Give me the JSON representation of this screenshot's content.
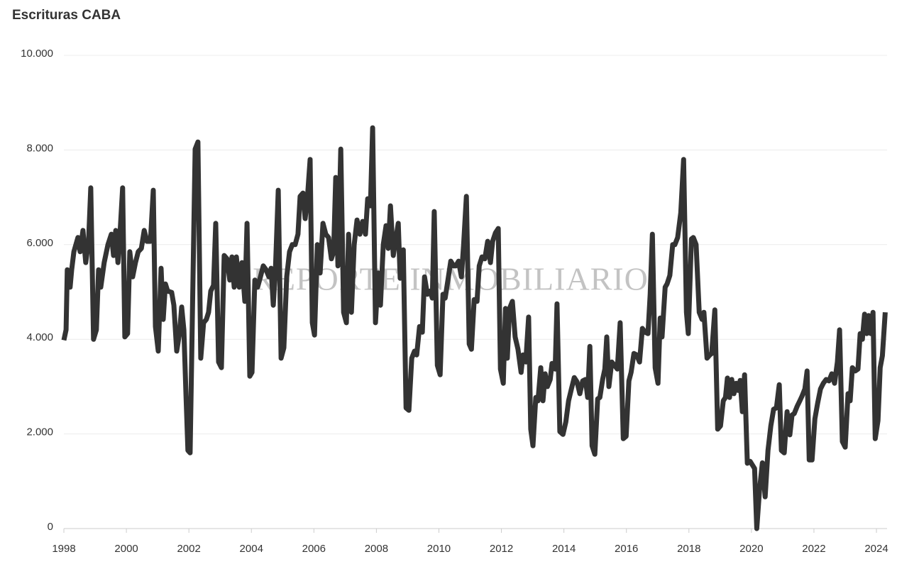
{
  "chart_data": {
    "type": "line",
    "title": "Escrituras CABA",
    "watermark": "REPORTE INMOBILIARIO",
    "color": "#333333",
    "grid": true,
    "xlim": [
      1998,
      2024.34
    ],
    "xticks": [
      1998,
      2000,
      2002,
      2004,
      2006,
      2008,
      2010,
      2012,
      2014,
      2016,
      2018,
      2020,
      2022,
      2024
    ],
    "ylim": [
      0,
      10000
    ],
    "yticks": [
      0,
      {
        "value": 2000,
        "label": "2.000"
      },
      {
        "value": 4000,
        "label": "4.000"
      },
      {
        "value": 6000,
        "label": "6.000"
      },
      {
        "value": 8000,
        "label": "8.000"
      },
      {
        "value": 10000,
        "label": "10.000"
      }
    ],
    "x": [
      1998.0,
      1998.07,
      1998.11,
      1998.2,
      1998.25,
      1998.32,
      1998.45,
      1998.52,
      1998.61,
      1998.7,
      1998.79,
      1998.86,
      1998.95,
      1999.04,
      1999.11,
      1999.18,
      1999.29,
      1999.41,
      1999.52,
      1999.59,
      1999.66,
      1999.73,
      1999.79,
      1999.88,
      1999.95,
      2000.04,
      2000.11,
      2000.2,
      2000.29,
      2000.38,
      2000.48,
      2000.57,
      2000.66,
      2000.77,
      2000.86,
      2000.93,
      2001.02,
      2001.11,
      2001.18,
      2001.25,
      2001.32,
      2001.45,
      2001.52,
      2001.61,
      2001.7,
      2001.77,
      2001.84,
      2001.91,
      2001.97,
      2002.04,
      2002.11,
      2002.2,
      2002.29,
      2002.38,
      2002.47,
      2002.56,
      2002.63,
      2002.7,
      2002.79,
      2002.86,
      2002.95,
      2003.04,
      2003.13,
      2003.22,
      2003.31,
      2003.38,
      2003.45,
      2003.52,
      2003.61,
      2003.7,
      2003.79,
      2003.86,
      2003.95,
      2004.02,
      2004.11,
      2004.2,
      2004.29,
      2004.38,
      2004.47,
      2004.56,
      2004.63,
      2004.7,
      2004.77,
      2004.86,
      2004.95,
      2005.04,
      2005.13,
      2005.22,
      2005.31,
      2005.4,
      2005.49,
      2005.56,
      2005.65,
      2005.72,
      2005.79,
      2005.88,
      2005.95,
      2006.02,
      2006.11,
      2006.2,
      2006.29,
      2006.38,
      2006.47,
      2006.56,
      2006.63,
      2006.7,
      2006.77,
      2006.86,
      2006.95,
      2007.04,
      2007.11,
      2007.2,
      2007.29,
      2007.38,
      2007.47,
      2007.56,
      2007.65,
      2007.72,
      2007.81,
      2007.88,
      2007.97,
      2008.06,
      2008.13,
      2008.22,
      2008.31,
      2008.38,
      2008.45,
      2008.54,
      2008.61,
      2008.7,
      2008.76,
      2008.86,
      2008.95,
      2009.04,
      2009.13,
      2009.22,
      2009.29,
      2009.38,
      2009.47,
      2009.54,
      2009.63,
      2009.72,
      2009.79,
      2009.85,
      2009.95,
      2010.04,
      2010.13,
      2010.2,
      2010.29,
      2010.38,
      2010.47,
      2010.54,
      2010.63,
      2010.72,
      2010.79,
      2010.88,
      2010.97,
      2011.04,
      2011.13,
      2011.22,
      2011.29,
      2011.38,
      2011.47,
      2011.56,
      2011.65,
      2011.72,
      2011.81,
      2011.9,
      2011.97,
      2012.06,
      2012.13,
      2012.19,
      2012.26,
      2012.35,
      2012.44,
      2012.53,
      2012.63,
      2012.69,
      2012.78,
      2012.87,
      2012.94,
      2013.01,
      2013.1,
      2013.17,
      2013.26,
      2013.33,
      2013.4,
      2013.47,
      2013.56,
      2013.62,
      2013.72,
      2013.78,
      2013.87,
      2013.97,
      2014.06,
      2014.15,
      2014.24,
      2014.33,
      2014.42,
      2014.51,
      2014.6,
      2014.69,
      2014.76,
      2014.83,
      2014.9,
      2014.99,
      2015.08,
      2015.15,
      2015.24,
      2015.31,
      2015.37,
      2015.44,
      2015.53,
      2015.62,
      2015.71,
      2015.8,
      2015.9,
      2015.99,
      2016.08,
      2016.15,
      2016.24,
      2016.33,
      2016.42,
      2016.51,
      2016.6,
      2016.69,
      2016.76,
      2016.83,
      2016.92,
      2017.01,
      2017.08,
      2017.14,
      2017.24,
      2017.3,
      2017.39,
      2017.48,
      2017.55,
      2017.64,
      2017.74,
      2017.83,
      2017.92,
      2017.98,
      2018.08,
      2018.14,
      2018.23,
      2018.33,
      2018.42,
      2018.48,
      2018.58,
      2018.67,
      2018.73,
      2018.83,
      2018.92,
      2019.01,
      2019.1,
      2019.17,
      2019.23,
      2019.3,
      2019.37,
      2019.44,
      2019.51,
      2019.57,
      2019.64,
      2019.71,
      2019.78,
      2019.87,
      2019.96,
      2020.1,
      2020.17,
      2020.26,
      2020.35,
      2020.44,
      2020.53,
      2020.62,
      2020.71,
      2020.8,
      2020.89,
      2020.96,
      2021.05,
      2021.14,
      2021.23,
      2021.3,
      2021.37,
      2021.46,
      2021.55,
      2021.62,
      2021.71,
      2021.78,
      2021.85,
      2021.94,
      2022.03,
      2022.12,
      2022.21,
      2022.3,
      2022.39,
      2022.48,
      2022.57,
      2022.66,
      2022.75,
      2022.82,
      2022.91,
      2023.0,
      2023.09,
      2023.16,
      2023.23,
      2023.32,
      2023.41,
      2023.48,
      2023.55,
      2023.62,
      2023.69,
      2023.75,
      2023.82,
      2023.89,
      2023.96,
      2024.05,
      2024.12,
      2024.19,
      2024.28
    ],
    "values": [
      3980,
      4200,
      5470,
      5100,
      5470,
      5850,
      6150,
      5850,
      6300,
      5620,
      6070,
      7200,
      4000,
      4200,
      5470,
      5100,
      5620,
      6000,
      6220,
      5770,
      6300,
      5620,
      6150,
      7200,
      4050,
      4120,
      5850,
      5320,
      5620,
      5850,
      5920,
      6300,
      6070,
      6070,
      7150,
      4270,
      3750,
      5500,
      4420,
      5170,
      5020,
      4990,
      4720,
      3750,
      4120,
      4680,
      4200,
      2770,
      1650,
      1600,
      4420,
      8020,
      8170,
      3600,
      4350,
      4420,
      4570,
      5020,
      5140,
      6450,
      3520,
      3400,
      5770,
      5700,
      5250,
      5740,
      5100,
      5740,
      5100,
      5620,
      4800,
      6450,
      3220,
      3300,
      5250,
      5100,
      5320,
      5550,
      5470,
      5320,
      5500,
      4720,
      5470,
      7150,
      3600,
      3820,
      5320,
      5850,
      6000,
      6000,
      6220,
      7020,
      7090,
      6550,
      6970,
      7800,
      4350,
      4090,
      6000,
      5400,
      6450,
      6220,
      6150,
      5700,
      5850,
      7420,
      5550,
      8020,
      4570,
      4350,
      6220,
      4570,
      6000,
      6520,
      6220,
      6490,
      6220,
      6970,
      6820,
      8470,
      4350,
      5400,
      4720,
      6000,
      6400,
      5920,
      6820,
      5770,
      6070,
      6450,
      5290,
      5890,
      2550,
      2500,
      3600,
      3750,
      3670,
      4270,
      4150,
      5320,
      4950,
      5020,
      4870,
      6700,
      3450,
      3250,
      4950,
      4870,
      5250,
      5650,
      5550,
      5550,
      5650,
      5320,
      6000,
      7020,
      3900,
      3790,
      4840,
      4800,
      5550,
      5740,
      5700,
      6070,
      5620,
      6070,
      6250,
      6340,
      3370,
      3070,
      4650,
      3600,
      4650,
      4800,
      4050,
      3790,
      3300,
      3670,
      3520,
      4470,
      2100,
      1750,
      2770,
      2700,
      3400,
      2700,
      3270,
      3000,
      3150,
      3490,
      3370,
      4750,
      2050,
      1990,
      2250,
      2700,
      2950,
      3190,
      3100,
      2850,
      3120,
      3150,
      2770,
      3850,
      1750,
      1570,
      2740,
      2770,
      3150,
      3370,
      4050,
      3000,
      3520,
      3450,
      3370,
      4350,
      1900,
      1950,
      3120,
      3300,
      3700,
      3670,
      3520,
      4230,
      4150,
      4120,
      4950,
      6220,
      3400,
      3070,
      4450,
      4050,
      5100,
      5170,
      5350,
      6000,
      6000,
      6150,
      6670,
      7800,
      4570,
      4120,
      6120,
      6150,
      6000,
      4570,
      4420,
      4570,
      3600,
      3670,
      3700,
      4620,
      2100,
      2170,
      2700,
      2770,
      3180,
      2770,
      3150,
      2850,
      3070,
      2920,
      3130,
      2470,
      3250,
      1380,
      1420,
      1270,
      0,
      820,
      1390,
      670,
      1650,
      2170,
      2520,
      2550,
      3040,
      1650,
      1600,
      2470,
      1980,
      2400,
      2430,
      2580,
      2700,
      2800,
      2950,
      3330,
      1450,
      1450,
      2320,
      2650,
      2950,
      3070,
      3150,
      3120,
      3270,
      3070,
      3520,
      4200,
      1840,
      1720,
      2850,
      2700,
      3400,
      3330,
      3370,
      4120,
      4000,
      4530,
      4120,
      4500,
      4120,
      4570,
      1900,
      2280,
      3400,
      3650,
      4570
    ]
  }
}
